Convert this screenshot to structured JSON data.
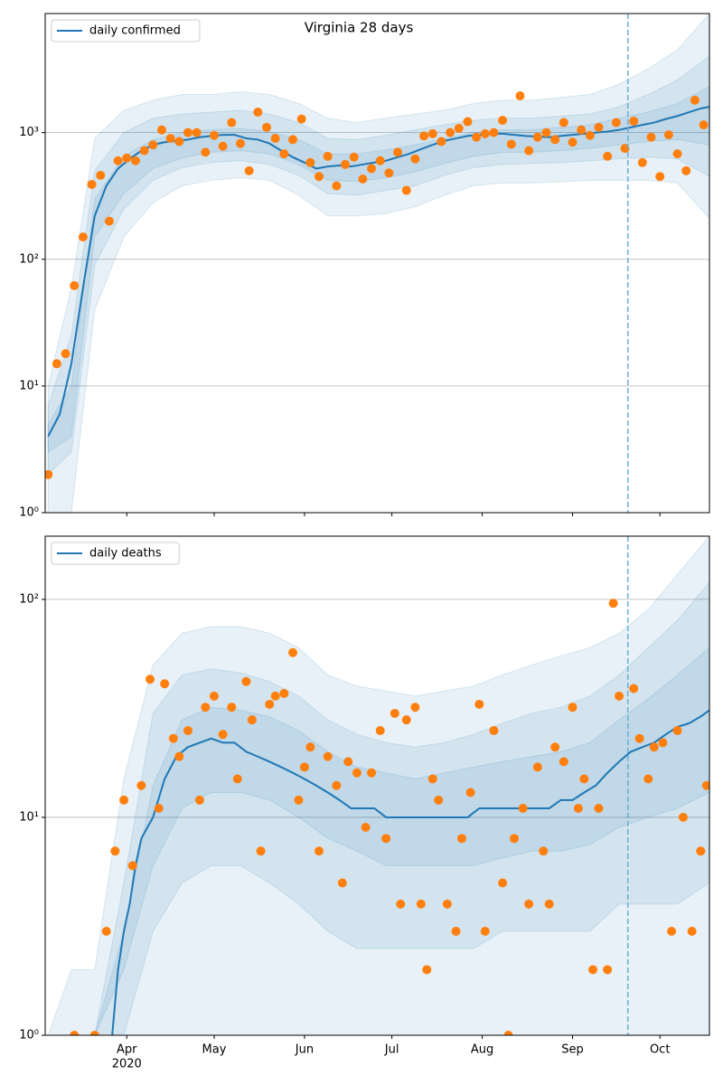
{
  "chart_data": [
    {
      "type": "line",
      "title": "Virginia 28 days",
      "log_scale": true,
      "grid": "y",
      "legend": "upper left",
      "xlim": [
        3,
        231
      ],
      "ylim": [
        1,
        8700
      ],
      "yticks": [
        {
          "value": 1,
          "label": "10⁰"
        },
        {
          "value": 10,
          "label": "10¹"
        },
        {
          "value": 100,
          "label": "10²"
        },
        {
          "value": 1000,
          "label": "10³"
        }
      ],
      "vline": {
        "x": 203,
        "color": "#6baed6"
      },
      "series": [
        {
          "name": "daily confirmed",
          "color": "#1f77b4",
          "x": [
            4,
            8,
            12,
            16,
            20,
            24,
            28,
            32,
            36,
            40,
            44,
            48,
            52,
            56,
            60,
            64,
            68,
            72,
            76,
            80,
            84,
            88,
            92,
            96,
            100,
            104,
            108,
            112,
            116,
            120,
            124,
            128,
            132,
            136,
            140,
            144,
            148,
            152,
            156,
            160,
            164,
            168,
            172,
            176,
            180,
            184,
            188,
            192,
            196,
            200,
            204,
            208,
            212,
            216,
            220,
            224,
            228,
            231
          ],
          "values": [
            4,
            6,
            15,
            60,
            220,
            380,
            520,
            620,
            720,
            800,
            840,
            860,
            880,
            920,
            940,
            960,
            960,
            900,
            880,
            820,
            720,
            640,
            580,
            520,
            540,
            550,
            540,
            560,
            580,
            600,
            640,
            680,
            740,
            800,
            860,
            900,
            940,
            960,
            980,
            980,
            960,
            940,
            930,
            920,
            940,
            960,
            980,
            1000,
            1020,
            1050,
            1100,
            1150,
            1200,
            1280,
            1350,
            1450,
            1550,
            1600
          ]
        }
      ],
      "points": {
        "color": "#ff7f0e",
        "x": [
          4,
          7,
          10,
          13,
          16,
          19,
          22,
          25,
          28,
          31,
          34,
          37,
          40,
          43,
          46,
          49,
          52,
          55,
          58,
          61,
          64,
          67,
          70,
          73,
          76,
          79,
          82,
          85,
          88,
          91,
          94,
          97,
          100,
          103,
          106,
          109,
          112,
          115,
          118,
          121,
          124,
          127,
          130,
          133,
          136,
          139,
          142,
          145,
          148,
          151,
          154,
          157,
          160,
          163,
          166,
          169,
          172,
          175,
          178,
          181,
          184,
          187,
          190,
          193,
          196,
          199,
          202,
          205,
          208,
          211,
          214,
          217,
          220,
          223,
          226,
          229
        ],
        "values": [
          2,
          15,
          18,
          62,
          150,
          390,
          460,
          200,
          600,
          630,
          600,
          720,
          800,
          1050,
          900,
          850,
          1000,
          1000,
          700,
          950,
          780,
          1200,
          820,
          500,
          1450,
          1100,
          900,
          680,
          880,
          1280,
          580,
          450,
          650,
          380,
          560,
          640,
          430,
          520,
          600,
          480,
          700,
          350,
          620,
          940,
          980,
          850,
          1000,
          1080,
          1220,
          920,
          980,
          1000,
          1250,
          810,
          1950,
          720,
          920,
          1000,
          880,
          1200,
          840,
          1050,
          950,
          1100,
          650,
          1200,
          750,
          1230,
          580,
          920,
          450,
          960,
          680,
          500,
          1800,
          1150
        ]
      },
      "bands": {
        "color": "#1f77b4",
        "x": [
          4,
          12,
          20,
          30,
          40,
          50,
          60,
          70,
          80,
          90,
          100,
          110,
          120,
          130,
          140,
          150,
          160,
          170,
          180,
          190,
          200,
          210,
          220,
          231
        ],
        "lower": [
          [
            1,
            1,
            40,
            150,
            280,
            380,
            420,
            440,
            420,
            320,
            220,
            220,
            230,
            260,
            320,
            380,
            400,
            400,
            410,
            420,
            420,
            420,
            400,
            210
          ],
          [
            2,
            3,
            90,
            250,
            420,
            530,
            580,
            600,
            560,
            460,
            330,
            320,
            350,
            380,
            460,
            530,
            560,
            570,
            580,
            600,
            620,
            640,
            620,
            450
          ],
          [
            3,
            4,
            150,
            330,
            520,
            630,
            700,
            720,
            680,
            560,
            420,
            410,
            440,
            490,
            570,
            650,
            700,
            700,
            720,
            750,
            800,
            850,
            880,
            800
          ]
        ],
        "upper": [
          [
            10,
            60,
            900,
            1500,
            1800,
            2000,
            2000,
            2100,
            2000,
            1700,
            1300,
            1200,
            1300,
            1400,
            1500,
            1700,
            1800,
            1800,
            1900,
            2000,
            2400,
            3200,
            4500,
            8700
          ],
          [
            7,
            25,
            500,
            1000,
            1300,
            1400,
            1450,
            1500,
            1400,
            1200,
            900,
            880,
            950,
            1050,
            1150,
            1250,
            1300,
            1300,
            1350,
            1400,
            1600,
            2000,
            2600,
            4000
          ],
          [
            5,
            10,
            300,
            650,
            880,
            1000,
            1050,
            1080,
            1020,
            880,
            680,
            680,
            730,
            800,
            900,
            1000,
            1050,
            1050,
            1100,
            1150,
            1300,
            1450,
            1700,
            2300
          ]
        ]
      }
    },
    {
      "type": "line",
      "log_scale": true,
      "grid": "y",
      "legend": "upper left",
      "xlim": [
        3,
        231
      ],
      "ylim": [
        1,
        195
      ],
      "xticks": [
        {
          "value": 31,
          "label": "Apr"
        },
        {
          "value": 61,
          "label": "May"
        },
        {
          "value": 92,
          "label": "Jun"
        },
        {
          "value": 122,
          "label": "Jul"
        },
        {
          "value": 153,
          "label": "Aug"
        },
        {
          "value": 184,
          "label": "Sep"
        },
        {
          "value": 214,
          "label": "Oct"
        }
      ],
      "year_label": "2020",
      "yticks": [
        {
          "value": 1,
          "label": "10⁰"
        },
        {
          "value": 10,
          "label": "10¹"
        },
        {
          "value": 100,
          "label": "10²"
        }
      ],
      "vline": {
        "x": 203,
        "color": "#6baed6"
      },
      "series": [
        {
          "name": "daily deaths",
          "color": "#1f77b4",
          "x": [
            26,
            28,
            30,
            32,
            34,
            36,
            40,
            44,
            48,
            52,
            56,
            60,
            64,
            68,
            72,
            76,
            80,
            84,
            88,
            92,
            96,
            100,
            104,
            108,
            112,
            116,
            120,
            124,
            128,
            132,
            136,
            140,
            144,
            148,
            152,
            156,
            160,
            164,
            168,
            172,
            176,
            180,
            184,
            188,
            192,
            196,
            200,
            204,
            208,
            212,
            216,
            220,
            224,
            228,
            231
          ],
          "values": [
            1,
            2,
            3,
            4,
            6,
            8,
            10,
            15,
            19,
            21,
            22,
            23,
            22,
            22,
            20,
            19,
            18,
            17,
            16,
            15,
            14,
            13,
            12,
            11,
            11,
            11,
            10,
            10,
            10,
            10,
            10,
            10,
            10,
            10,
            11,
            11,
            11,
            11,
            11,
            11,
            11,
            12,
            12,
            13,
            14,
            16,
            18,
            20,
            21,
            22,
            24,
            26,
            27,
            29,
            31
          ]
        }
      ],
      "points": {
        "color": "#ff7f0e",
        "x": [
          13,
          20,
          24,
          27,
          30,
          33,
          36,
          39,
          42,
          44,
          47,
          49,
          52,
          56,
          58,
          61,
          64,
          67,
          69,
          72,
          74,
          77,
          80,
          82,
          85,
          88,
          90,
          92,
          94,
          97,
          100,
          103,
          105,
          107,
          110,
          113,
          115,
          118,
          120,
          123,
          125,
          127,
          130,
          132,
          134,
          136,
          138,
          141,
          144,
          146,
          149,
          152,
          154,
          157,
          160,
          162,
          164,
          167,
          169,
          172,
          174,
          176,
          178,
          181,
          184,
          186,
          188,
          191,
          193,
          196,
          198,
          200,
          205,
          207,
          210,
          212,
          215,
          218,
          220,
          222,
          225,
          228,
          230
        ],
        "values": [
          1,
          1,
          3,
          7,
          12,
          6,
          14,
          43,
          11,
          41,
          23,
          19,
          25,
          12,
          32,
          36,
          24,
          32,
          15,
          42,
          28,
          7,
          33,
          36,
          37,
          57,
          12,
          17,
          21,
          7,
          19,
          14,
          5,
          18,
          16,
          9,
          16,
          25,
          8,
          30,
          4,
          28,
          32,
          4,
          2,
          15,
          12,
          4,
          3,
          8,
          13,
          33,
          3,
          25,
          5,
          1,
          8,
          11,
          4,
          17,
          7,
          4,
          21,
          18,
          32,
          11,
          15,
          2,
          11,
          2,
          96,
          36,
          39,
          23,
          15,
          21,
          22,
          3,
          25,
          10,
          3,
          7,
          14
        ]
      },
      "bands": {
        "color": "#1f77b4",
        "x": [
          4,
          12,
          20,
          30,
          40,
          50,
          60,
          70,
          80,
          90,
          100,
          110,
          120,
          130,
          140,
          150,
          160,
          170,
          180,
          190,
          200,
          210,
          220,
          231
        ],
        "lower": [
          [
            1,
            1,
            1,
            1,
            1,
            1,
            1,
            1,
            1,
            1,
            1,
            1,
            1,
            1,
            1,
            1,
            1,
            1,
            1,
            1,
            1,
            1,
            1,
            1
          ],
          [
            1,
            1,
            1,
            1,
            3,
            5,
            6,
            6,
            5,
            4,
            3,
            2.5,
            2.5,
            2.5,
            2.5,
            2.5,
            3,
            3,
            3,
            3,
            4,
            4,
            4,
            5
          ],
          [
            1,
            1,
            1,
            2,
            6,
            11,
            13,
            13,
            12,
            10,
            8,
            7,
            6,
            6,
            6,
            6,
            6.5,
            7,
            7,
            7.5,
            9,
            10,
            11,
            13
          ]
        ],
        "upper": [
          [
            1,
            2,
            2,
            15,
            50,
            70,
            75,
            75,
            70,
            60,
            45,
            40,
            38,
            36,
            38,
            40,
            45,
            50,
            55,
            60,
            70,
            90,
            130,
            195
          ],
          [
            1,
            1,
            1,
            5,
            30,
            45,
            48,
            46,
            42,
            36,
            28,
            24,
            22,
            21,
            22,
            24,
            27,
            30,
            32,
            36,
            45,
            60,
            80,
            120
          ],
          [
            1,
            1,
            1,
            3,
            14,
            28,
            32,
            31,
            29,
            25,
            20,
            17,
            16,
            15,
            16,
            17,
            18,
            19,
            20,
            22,
            28,
            35,
            45,
            60
          ]
        ]
      }
    }
  ]
}
